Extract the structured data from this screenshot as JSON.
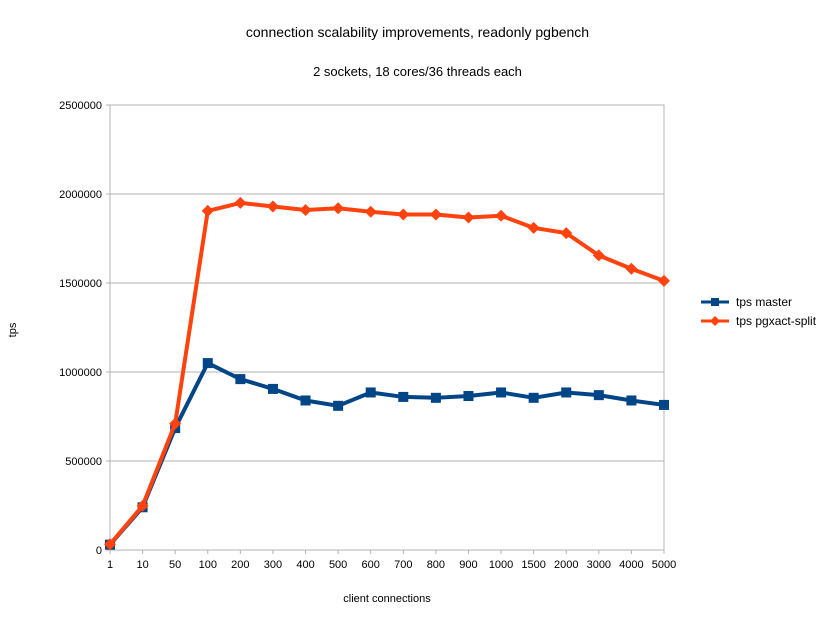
{
  "chart_data": {
    "type": "line",
    "title": "connection scalability improvements, readonly pgbench",
    "subtitle": "2 sockets, 18 cores/36 threads each",
    "xlabel": "client connections",
    "ylabel": "tps",
    "categories": [
      "1",
      "10",
      "50",
      "100",
      "200",
      "300",
      "400",
      "500",
      "600",
      "700",
      "800",
      "900",
      "1000",
      "1500",
      "2000",
      "3000",
      "4000",
      "5000"
    ],
    "series": [
      {
        "name": "tps master",
        "color": "#004586",
        "marker": "square",
        "values": [
          30000,
          240000,
          685000,
          1050000,
          960000,
          905000,
          840000,
          810000,
          885000,
          860000,
          855000,
          865000,
          885000,
          855000,
          885000,
          870000,
          840000,
          815000
        ]
      },
      {
        "name": "tps pgxact-split",
        "color": "#FF420E",
        "marker": "diamond",
        "values": [
          32000,
          248000,
          710000,
          1905000,
          1950000,
          1930000,
          1910000,
          1920000,
          1900000,
          1885000,
          1885000,
          1868000,
          1878000,
          1810000,
          1780000,
          1655000,
          1580000,
          1512000
        ]
      }
    ],
    "ylim": [
      0,
      2500000
    ],
    "ytick_interval": 500000,
    "ytick_labels": [
      "0",
      "500000",
      "1000000",
      "1500000",
      "2000000",
      "2500000"
    ],
    "grid": "horizontal",
    "legend_position": "right",
    "axis_color": "#b3b3b3",
    "text_color": "#000000",
    "background": "#ffffff"
  }
}
